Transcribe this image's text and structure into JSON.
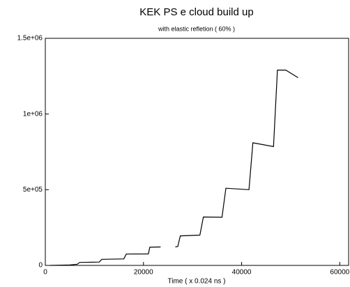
{
  "chart_data": {
    "type": "line",
    "title": "KEK  PS e  cloud build  up",
    "subtitle": "with elastic refletion ( 60% )",
    "xlabel": "Time ( x 0.024 ns )",
    "x": [
      1000,
      5000,
      6500,
      7000,
      11000,
      11500,
      16000,
      16500,
      21000,
      21300,
      23500,
      24500,
      26500,
      27000,
      27500,
      31500,
      32200,
      36000,
      36800,
      41500,
      42300,
      46500,
      47300,
      49000,
      51500
    ],
    "series": [
      {
        "color": "#000000",
        "values": [
          0,
          3000,
          8000,
          20000,
          22000,
          40000,
          43000,
          75000,
          76000,
          120000,
          122000,
          null,
          122000,
          125000,
          195000,
          200000,
          320000,
          318000,
          510000,
          500000,
          810000,
          785000,
          1290000,
          1290000,
          1240000
        ]
      }
    ],
    "xlim": [
      0,
      61800
    ],
    "xticks": [
      0,
      20000,
      40000,
      60000
    ],
    "ylim": [
      0,
      1500000
    ],
    "yticks": [
      0,
      {
        "value": 500000,
        "label": "5e+05"
      },
      {
        "value": 1000000,
        "label": "1e+06"
      },
      {
        "value": 1500000,
        "label": "1.5e+06"
      }
    ],
    "grid": false
  }
}
